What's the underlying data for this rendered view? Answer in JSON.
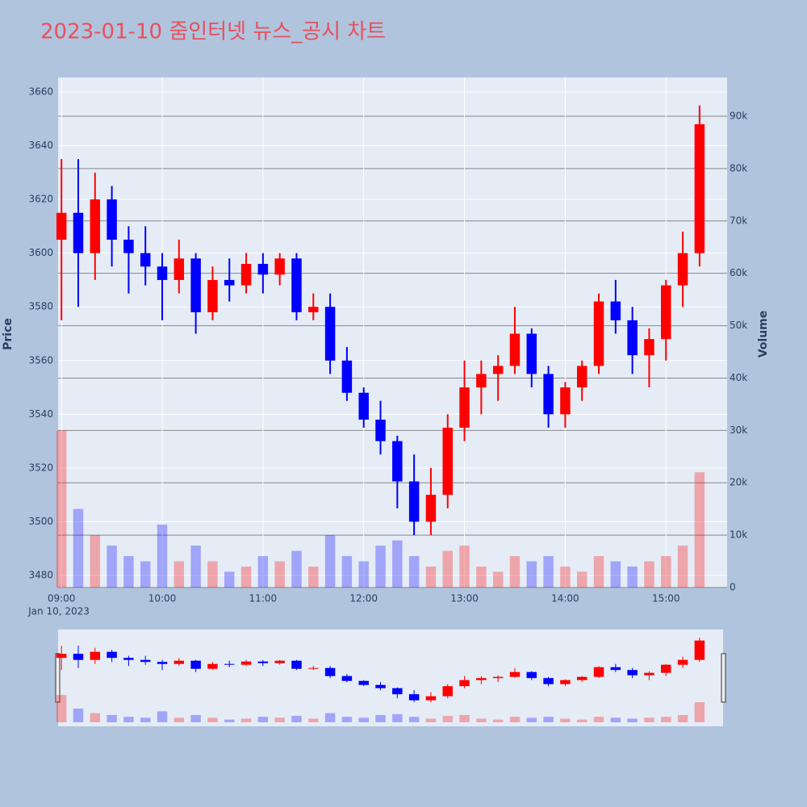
{
  "chart_data": {
    "type": "candlestick",
    "title": "2023-01-10 줌인터넷 뉴스_공시 차트",
    "ylabel": "Price",
    "y2label": "Volume",
    "x_date_label": "Jan 10, 2023",
    "x": [
      "09:00",
      "09:10",
      "09:20",
      "09:30",
      "09:40",
      "09:50",
      "10:00",
      "10:10",
      "10:20",
      "10:30",
      "10:40",
      "10:50",
      "11:00",
      "11:10",
      "11:20",
      "11:30",
      "11:40",
      "11:50",
      "12:00",
      "12:10",
      "12:20",
      "12:30",
      "12:40",
      "12:50",
      "13:00",
      "13:10",
      "13:20",
      "13:30",
      "13:40",
      "13:50",
      "14:00",
      "14:10",
      "14:20",
      "14:30",
      "14:40",
      "14:50",
      "15:00",
      "15:10",
      "15:20"
    ],
    "open": [
      3605,
      3615,
      3600,
      3620,
      3605,
      3600,
      3595,
      3590,
      3598,
      3578,
      3590,
      3588,
      3596,
      3592,
      3598,
      3578,
      3580,
      3560,
      3548,
      3538,
      3530,
      3515,
      3500,
      3510,
      3535,
      3550,
      3555,
      3558,
      3570,
      3555,
      3540,
      3550,
      3558,
      3582,
      3575,
      3562,
      3568,
      3588,
      3600
    ],
    "high": [
      3635,
      3635,
      3630,
      3625,
      3610,
      3610,
      3600,
      3605,
      3600,
      3595,
      3598,
      3600,
      3600,
      3600,
      3600,
      3585,
      3585,
      3565,
      3550,
      3545,
      3532,
      3525,
      3520,
      3540,
      3560,
      3560,
      3562,
      3580,
      3572,
      3558,
      3552,
      3560,
      3585,
      3590,
      3580,
      3572,
      3590,
      3608,
      3655
    ],
    "low": [
      3575,
      3580,
      3590,
      3595,
      3585,
      3588,
      3575,
      3585,
      3570,
      3575,
      3582,
      3585,
      3585,
      3588,
      3575,
      3575,
      3555,
      3545,
      3535,
      3525,
      3505,
      3495,
      3495,
      3505,
      3530,
      3540,
      3545,
      3555,
      3550,
      3535,
      3535,
      3545,
      3555,
      3570,
      3555,
      3550,
      3560,
      3580,
      3595
    ],
    "close": [
      3615,
      3600,
      3620,
      3605,
      3600,
      3595,
      3590,
      3598,
      3578,
      3590,
      3588,
      3596,
      3592,
      3598,
      3578,
      3580,
      3560,
      3548,
      3538,
      3530,
      3515,
      3500,
      3510,
      3535,
      3550,
      3555,
      3558,
      3570,
      3555,
      3540,
      3550,
      3558,
      3582,
      3575,
      3562,
      3568,
      3588,
      3600,
      3648
    ],
    "volume": [
      30000,
      15000,
      10000,
      8000,
      6000,
      5000,
      12000,
      5000,
      8000,
      5000,
      3000,
      4000,
      6000,
      5000,
      7000,
      4000,
      10000,
      6000,
      5000,
      8000,
      9000,
      6000,
      4000,
      7000,
      8000,
      4000,
      3000,
      6000,
      5000,
      6000,
      4000,
      3000,
      6000,
      5000,
      4000,
      5000,
      6000,
      8000,
      22000
    ],
    "colors": {
      "increasing": "#ff0000",
      "decreasing": "#0000ff"
    },
    "xlim": [
      "08:58",
      "15:34"
    ],
    "xticks": [
      "09:00",
      "10:00",
      "11:00",
      "12:00",
      "13:00",
      "14:00",
      "15:00"
    ],
    "ylim": [
      3475.5,
      3665.4
    ],
    "yticks": [
      3480,
      3500,
      3520,
      3540,
      3560,
      3580,
      3600,
      3620,
      3640,
      3660
    ],
    "y2lim": [
      0,
      97400
    ],
    "y2ticks": [
      0,
      {
        "value": 10000,
        "label": "10k"
      },
      {
        "value": 20000,
        "label": "20k"
      },
      {
        "value": 30000,
        "label": "30k"
      },
      {
        "value": 40000,
        "label": "40k"
      },
      {
        "value": 50000,
        "label": "50k"
      },
      {
        "value": 60000,
        "label": "60k"
      },
      {
        "value": 70000,
        "label": "70k"
      },
      {
        "value": 80000,
        "label": "80k"
      },
      {
        "value": 90000,
        "label": "90k"
      }
    ],
    "grid": true,
    "rangeslider": true
  }
}
